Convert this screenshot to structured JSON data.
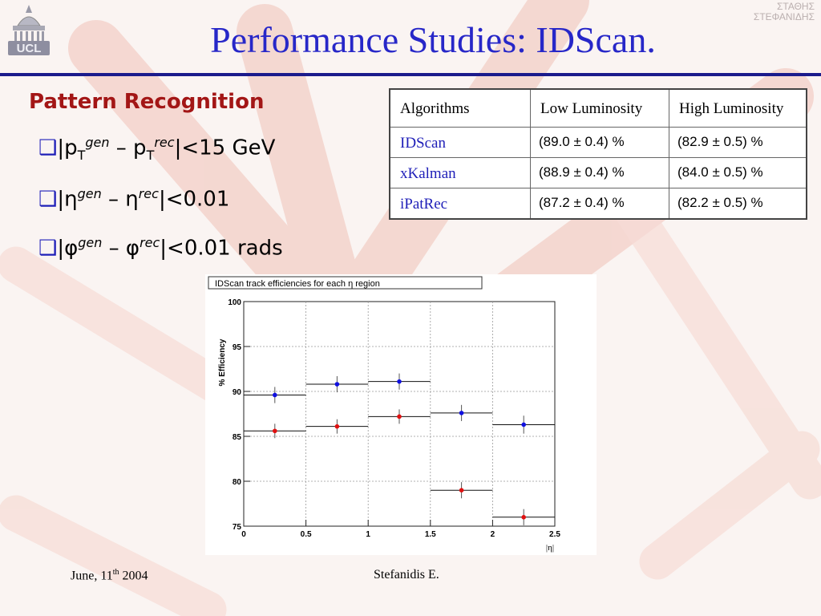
{
  "header": {
    "title": "Performance Studies: IDScan.",
    "logo_text": "UCL",
    "corner_text_lines": [
      "ΣΤΑΘΗΣ",
      "ΣΤΕΦΑΝΙΔΗΣ"
    ]
  },
  "section_title": "Pattern Recognition",
  "bullets": [
    {
      "prefix": "|",
      "var": "p",
      "sub_a": "T",
      "sup_a": "gen",
      "mid": " – ",
      "var2": "p",
      "sub_b": "T",
      "sup_b": "rec",
      "tail": "|<15 GeV"
    },
    {
      "prefix": "|",
      "var": "η",
      "sub_a": "",
      "sup_a": "gen",
      "mid": " – ",
      "var2": "η",
      "sub_b": "",
      "sup_b": "rec",
      "tail": "|<0.01"
    },
    {
      "prefix": "|",
      "var": "φ",
      "sub_a": "",
      "sup_a": "gen",
      "mid": " – ",
      "var2": "φ",
      "sub_b": "",
      "sup_b": "rec",
      "tail": "|<0.01 rads"
    }
  ],
  "table": {
    "headers": [
      "Algorithms",
      "Low Luminosity",
      "High Luminosity"
    ],
    "rows": [
      {
        "name": "IDScan",
        "low": "(89.0 ± 0.4) %",
        "high": "(82.9 ± 0.5) %"
      },
      {
        "name": "xKalman",
        "low": "(88.9 ± 0.4) %",
        "high": "(84.0 ± 0.5) %"
      },
      {
        "name": "iPatRec",
        "low": "(87.2 ± 0.4) %",
        "high": "(82.2 ± 0.5) %"
      }
    ]
  },
  "chart_data": {
    "type": "scatter",
    "title": "IDScan track efficiencies for each η region",
    "xlabel": "|η|",
    "ylabel": "% Efficiency",
    "xlim": [
      0,
      2.5
    ],
    "ylim": [
      75,
      100
    ],
    "x_ticks": [
      "0",
      "0.5",
      "1",
      "1.5",
      "2",
      "2.5"
    ],
    "y_ticks": [
      "75",
      "80",
      "85",
      "90",
      "95",
      "100"
    ],
    "grid": true,
    "bins": [
      [
        0,
        0.5
      ],
      [
        0.5,
        1.0
      ],
      [
        1.0,
        1.5
      ],
      [
        1.5,
        2.0
      ],
      [
        2.0,
        2.5
      ]
    ],
    "x": [
      0.25,
      0.75,
      1.25,
      1.75,
      2.25
    ],
    "series": [
      {
        "color": "#1010e0",
        "values": [
          89.6,
          90.8,
          91.1,
          87.6,
          86.3
        ],
        "errors": [
          0.9,
          0.9,
          0.9,
          0.9,
          1.0
        ]
      },
      {
        "color": "#e01010",
        "values": [
          85.6,
          86.1,
          87.2,
          79.0,
          76.0
        ],
        "errors": [
          0.8,
          0.8,
          0.8,
          0.9,
          0.9
        ]
      }
    ]
  },
  "footer": {
    "date_prefix": "June, 11",
    "date_sup": "th",
    "date_suffix": " 2004",
    "author": "Stefanidis E."
  }
}
